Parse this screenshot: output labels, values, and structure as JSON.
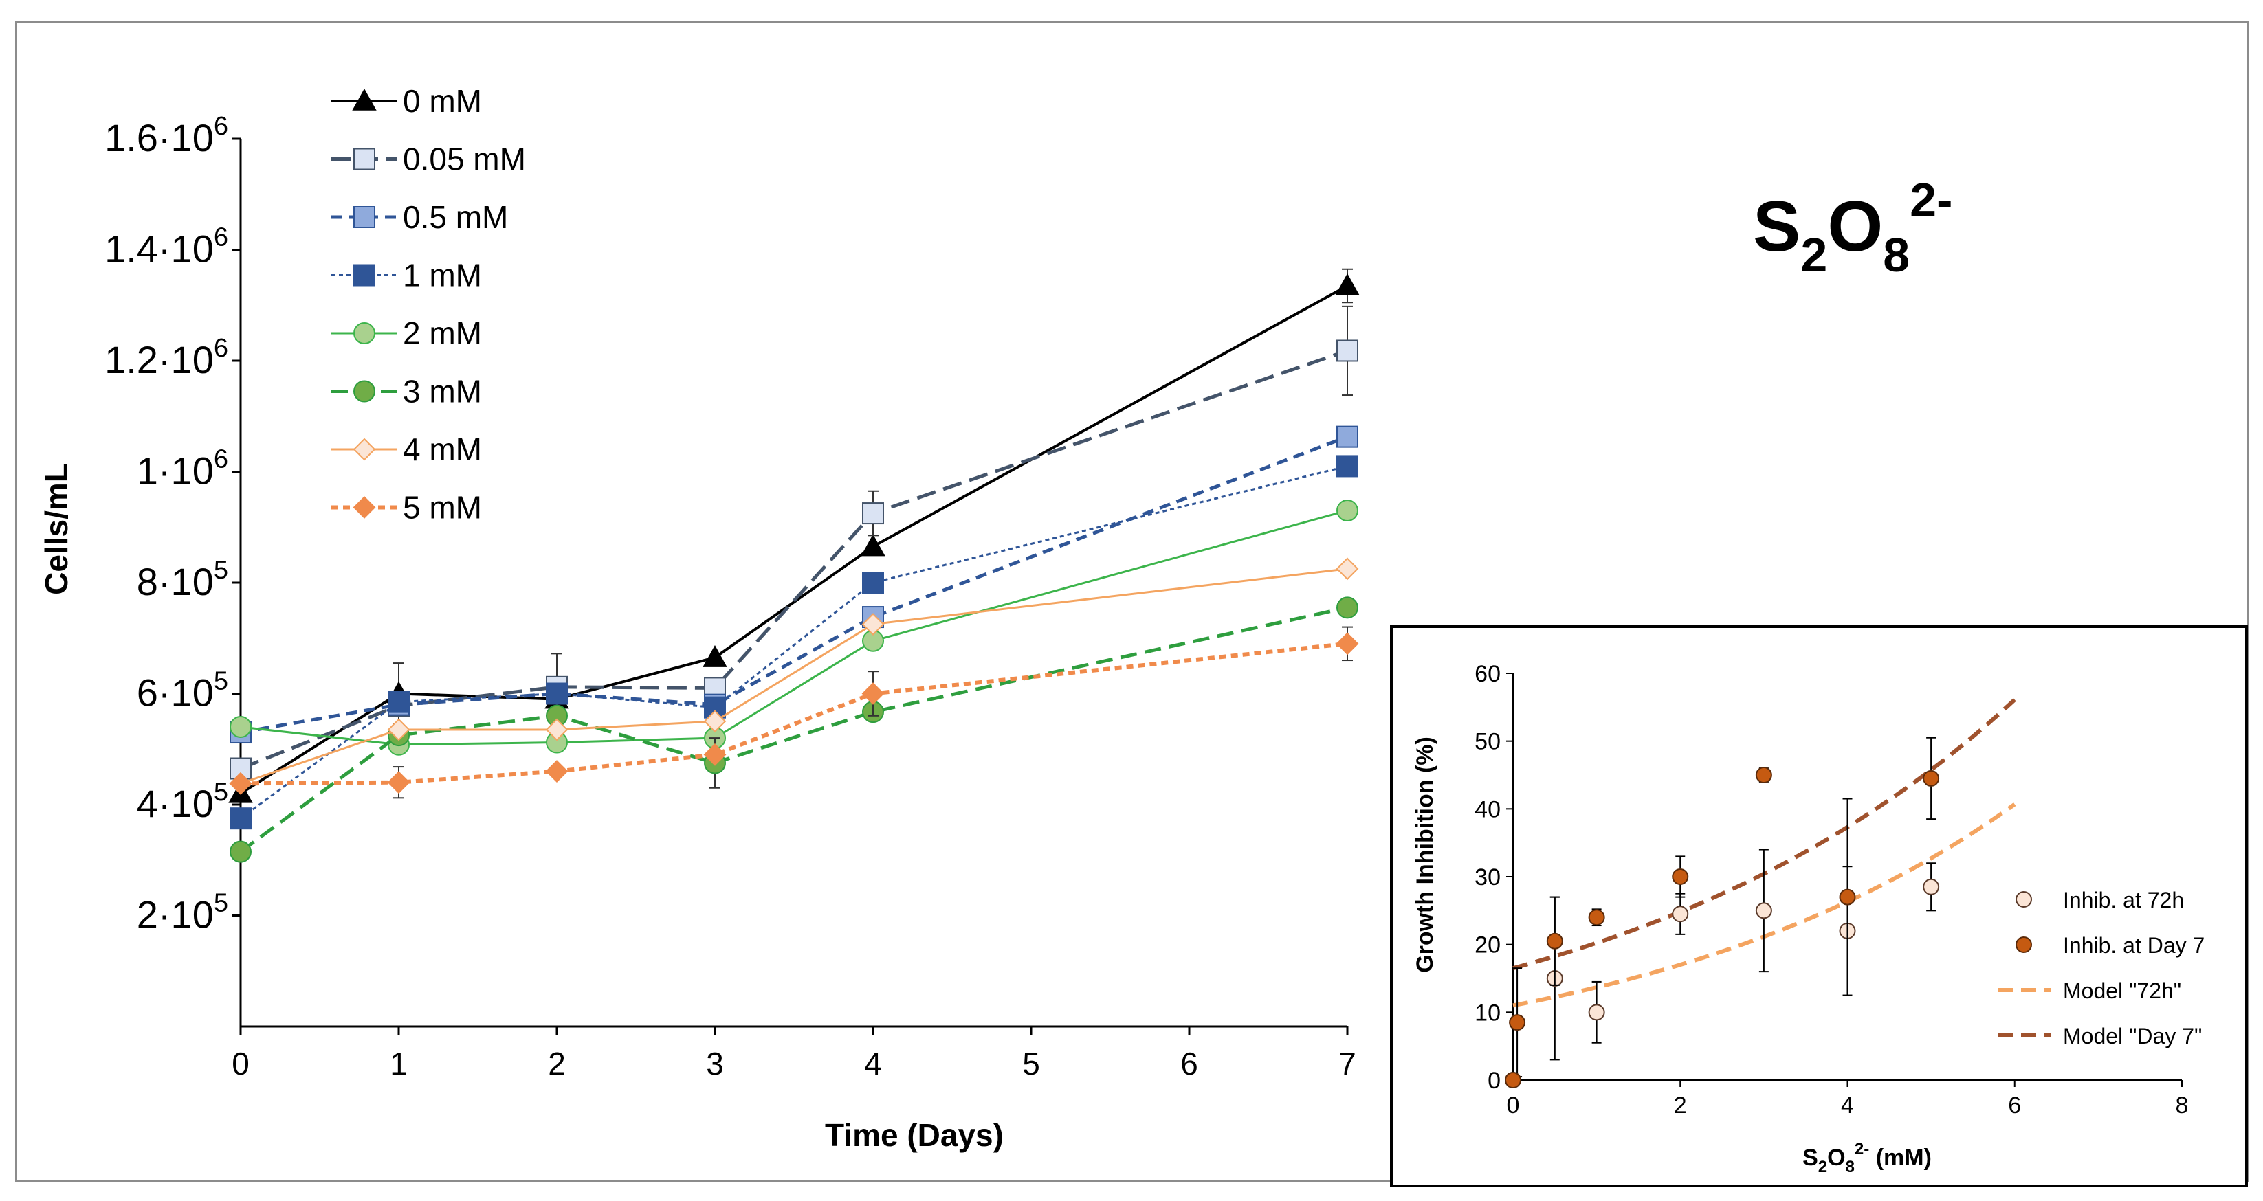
{
  "chart_data": [
    {
      "type": "line",
      "title": "S2O82-",
      "title_parts": {
        "base1": "S",
        "sub1": "2",
        "base2": "O",
        "sub2": "8",
        "sup": "2-"
      },
      "xlabel": "Time (Days)",
      "ylabel": "Cells/mL",
      "x_ticks": [
        "0",
        "1",
        "2",
        "3",
        "4",
        "5",
        "6",
        "7"
      ],
      "xlim": [
        0,
        7
      ],
      "ylim": [
        0,
        1600000
      ],
      "y_ticks": [
        {
          "value": 200000,
          "mantissa": "2·10",
          "exp": "5"
        },
        {
          "value": 400000,
          "mantissa": "4·10",
          "exp": "5"
        },
        {
          "value": 600000,
          "mantissa": "6·10",
          "exp": "5"
        },
        {
          "value": 800000,
          "mantissa": "8·10",
          "exp": "5"
        },
        {
          "value": 1000000,
          "mantissa": "1·10",
          "exp": "6"
        },
        {
          "value": 1200000,
          "mantissa": "1.2·10",
          "exp": "6"
        },
        {
          "value": 1400000,
          "mantissa": "1.4·10",
          "exp": "6"
        },
        {
          "value": 1600000,
          "mantissa": "1.6·10",
          "exp": "6"
        }
      ],
      "grid": false,
      "legend_position": "top-left",
      "series": [
        {
          "name": "0 mM",
          "color": "#000000",
          "marker": "triangle",
          "marker_fill": "#000000",
          "dash": "",
          "stroke_width": 4,
          "x": [
            0,
            1,
            2,
            3,
            4,
            7
          ],
          "y": [
            420000,
            600000,
            590000,
            665000,
            865000,
            1335000
          ],
          "err": [
            0,
            55000,
            0,
            0,
            0,
            30000
          ]
        },
        {
          "name": "0.05 mM",
          "color": "#44546a",
          "marker": "square",
          "marker_fill": "#dae3f3",
          "dash": "28,12",
          "stroke_width": 5,
          "x": [
            0,
            1,
            2,
            3,
            4,
            7
          ],
          "y": [
            465000,
            578000,
            612000,
            610000,
            925000,
            1218000
          ],
          "err": [
            0,
            0,
            60000,
            0,
            40000,
            80000
          ]
        },
        {
          "name": "0.5 mM",
          "color": "#2f5597",
          "marker": "square",
          "marker_fill": "#8faadc",
          "dash": "16,10",
          "stroke_width": 5,
          "x": [
            0,
            1,
            2,
            3,
            4,
            7
          ],
          "y": [
            530000,
            580000,
            600000,
            580000,
            738000,
            1063000
          ],
          "err": [
            0,
            0,
            0,
            0,
            0,
            0
          ]
        },
        {
          "name": "1 mM",
          "color": "#2f5597",
          "marker": "square",
          "marker_fill": "#2f5597",
          "dash": "6,5",
          "stroke_width": 3,
          "x": [
            0,
            1,
            2,
            3,
            4,
            7
          ],
          "y": [
            375000,
            585000,
            600000,
            575000,
            800000,
            1010000
          ],
          "err": [
            0,
            0,
            0,
            0,
            0,
            0
          ]
        },
        {
          "name": "2 mM",
          "color": "#3cb44b",
          "marker": "circle",
          "marker_fill": "#a9d18e",
          "dash": "",
          "stroke_width": 3,
          "x": [
            0,
            1,
            2,
            3,
            4,
            7
          ],
          "y": [
            540000,
            508000,
            512000,
            520000,
            695000,
            930000
          ],
          "err": [
            0,
            0,
            0,
            0,
            0,
            0
          ]
        },
        {
          "name": "3 mM",
          "color": "#2e9e3e",
          "marker": "circle",
          "marker_fill": "#70ad47",
          "dash": "24,12",
          "stroke_width": 5,
          "x": [
            0,
            1,
            2,
            3,
            4,
            7
          ],
          "y": [
            315000,
            525000,
            560000,
            475000,
            567000,
            755000
          ],
          "err": [
            0,
            0,
            0,
            45000,
            0,
            0
          ]
        },
        {
          "name": "4 mM",
          "color": "#f4a460",
          "marker": "diamond",
          "marker_fill": "#fbe5d6",
          "dash": "",
          "stroke_width": 3,
          "x": [
            0,
            1,
            2,
            3,
            4,
            7
          ],
          "y": [
            438000,
            535000,
            535000,
            550000,
            725000,
            825000
          ],
          "err": [
            0,
            0,
            0,
            0,
            0,
            0
          ]
        },
        {
          "name": "5 mM",
          "color": "#f08a4b",
          "marker": "diamond",
          "marker_fill": "#f08a4b",
          "dash": "10,7",
          "stroke_width": 6,
          "x": [
            0,
            1,
            2,
            3,
            4,
            7
          ],
          "y": [
            438000,
            440000,
            460000,
            490000,
            600000,
            690000
          ],
          "err": [
            0,
            28000,
            0,
            0,
            40000,
            30000
          ]
        }
      ]
    },
    {
      "type": "scatter",
      "xlabel": "S2O82- (mM)",
      "xlabel_parts": {
        "base1": "S",
        "sub1": "2",
        "base2": "O",
        "sub2": "8",
        "sup": "2-",
        "rest": " (mM)"
      },
      "ylabel": "Growth Inhibition (%)",
      "xlim": [
        0,
        8
      ],
      "ylim": [
        0,
        60
      ],
      "x_ticks": [
        "0",
        "2",
        "4",
        "6",
        "8"
      ],
      "y_ticks": [
        "0",
        "10",
        "20",
        "30",
        "40",
        "50",
        "60"
      ],
      "legend_position": "right",
      "points": [
        {
          "name": "Inhib. at 72h",
          "fill": "#fbe5d6",
          "stroke": "#5a3a2a",
          "x": [
            0,
            0.5,
            1,
            2,
            3,
            4,
            5
          ],
          "y": [
            0,
            15,
            10,
            24.5,
            25,
            22,
            28.5
          ],
          "err": [
            0,
            12,
            4.5,
            3,
            9,
            9.5,
            3.5
          ]
        },
        {
          "name": "Inhib. at Day 7",
          "fill": "#c55a11",
          "stroke": "#5a2a0a",
          "x": [
            0,
            0.05,
            0.5,
            1,
            2,
            3,
            4,
            5
          ],
          "y": [
            0,
            8.5,
            20.5,
            24,
            30,
            45,
            27,
            44.5
          ],
          "err": [
            0,
            8,
            6.5,
            1.2,
            3,
            1,
            14.5,
            6
          ]
        }
      ],
      "models": [
        {
          "name": "Model \"72h\"",
          "color": "#f4a460",
          "y0": 11,
          "k": 0.218
        },
        {
          "name": "Model \"Day 7\"",
          "color": "#a0522d",
          "y0": 16.5,
          "k": 0.204
        }
      ],
      "x_end": 6
    }
  ]
}
